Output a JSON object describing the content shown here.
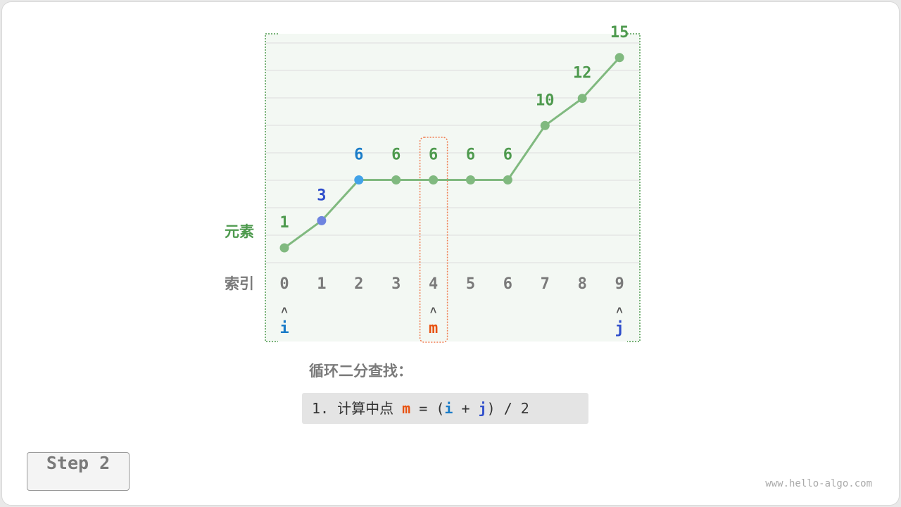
{
  "diagram": {
    "row_labels": {
      "elements": "元素",
      "indices": "索引"
    },
    "elements": [
      1,
      3,
      6,
      6,
      6,
      6,
      6,
      10,
      12,
      15
    ],
    "indices": [
      "0",
      "1",
      "2",
      "3",
      "4",
      "5",
      "6",
      "7",
      "8",
      "9"
    ],
    "pointers": [
      {
        "name": "i",
        "index": 0,
        "color": "#1a7cc8"
      },
      {
        "name": "m",
        "index": 4,
        "color": "#e8510f"
      },
      {
        "name": "j",
        "index": 9,
        "color": "#2f4ecb"
      }
    ],
    "arrow_glyph": "˄",
    "highlight": {
      "1": {
        "point": "#6e84e0",
        "label": "#2f4ecb"
      },
      "2": {
        "point": "#42a2e8",
        "label": "#1a7cc8"
      }
    },
    "colors": {
      "line": "#80b97f",
      "label": "#4e9a4e",
      "index": "#7a7a7a",
      "mid_box": "#f07b4f",
      "bg": "#f3f8f3"
    }
  },
  "caption": "循环二分查找：",
  "formula": {
    "prefix": "1. 计算中点 ",
    "m": "m",
    "eq": " = (",
    "i": "i",
    "plus": " + ",
    "j": "j",
    "suffix": ") / 2"
  },
  "step_button": "Step 2",
  "watermark": "www.hello-algo.com"
}
